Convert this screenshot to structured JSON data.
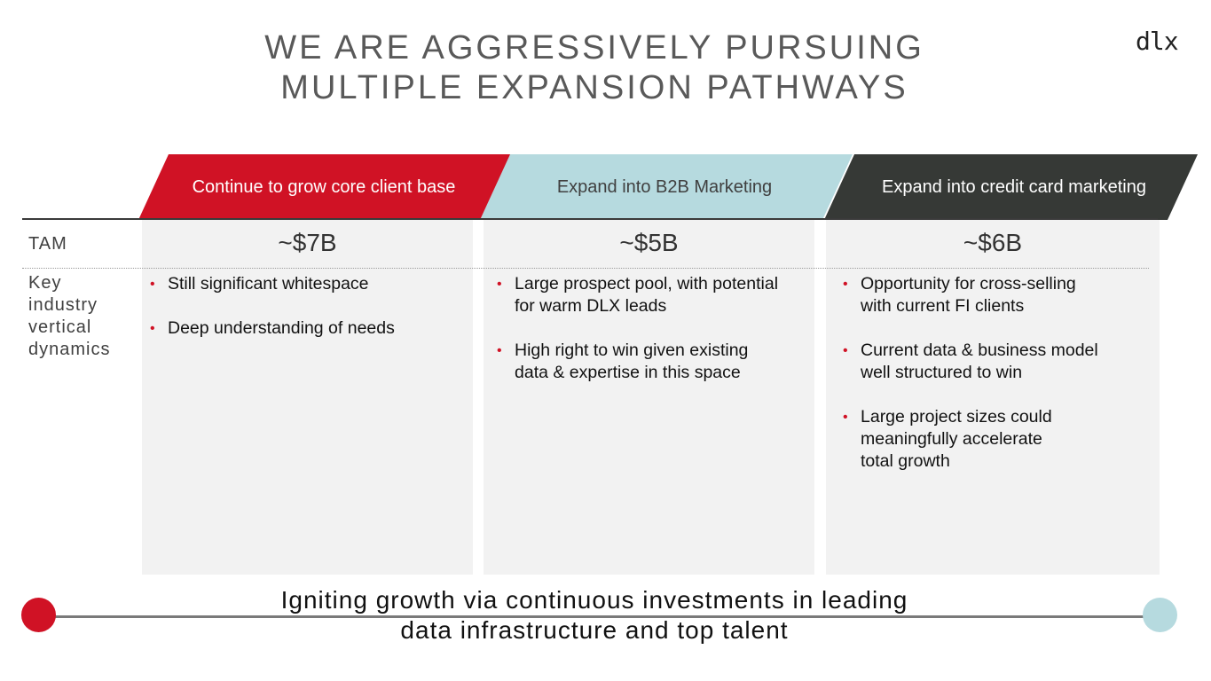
{
  "title": {
    "line1": "WE ARE AGGRESSIVELY PURSUING",
    "line2": "MULTIPLE EXPANSION PATHWAYS"
  },
  "logo": "dlx",
  "colors": {
    "red": "#d01225",
    "light_blue": "#b6dadf",
    "dark": "#363936",
    "panel": "#f2f2f2"
  },
  "row_labels": {
    "tam": "TAM",
    "dynamics": [
      "Key",
      "industry",
      "vertical",
      "dynamics"
    ]
  },
  "columns": [
    {
      "header": "Continue to grow core client base",
      "tam": "~$7B",
      "bullets": [
        [
          "Still significant whitespace"
        ],
        [
          "Deep understanding of needs"
        ]
      ]
    },
    {
      "header": "Expand into B2B Marketing",
      "tam": "~$5B",
      "bullets": [
        [
          "Large prospect pool, with potential",
          "for warm DLX leads"
        ],
        [
          "High right to win given existing",
          "data & expertise in this space"
        ]
      ]
    },
    {
      "header": "Expand into credit card marketing",
      "tam": "~$6B",
      "bullets": [
        [
          "Opportunity for cross-selling",
          "with current FI clients"
        ],
        [
          "Current data & business model",
          "well structured to win"
        ],
        [
          "Large project sizes could",
          "meaningfully accelerate",
          "total growth"
        ]
      ]
    }
  ],
  "bullet_char": "•",
  "footer": {
    "line1": "Igniting growth via continuous investments in leading",
    "line2": "data infrastructure and top talent"
  }
}
